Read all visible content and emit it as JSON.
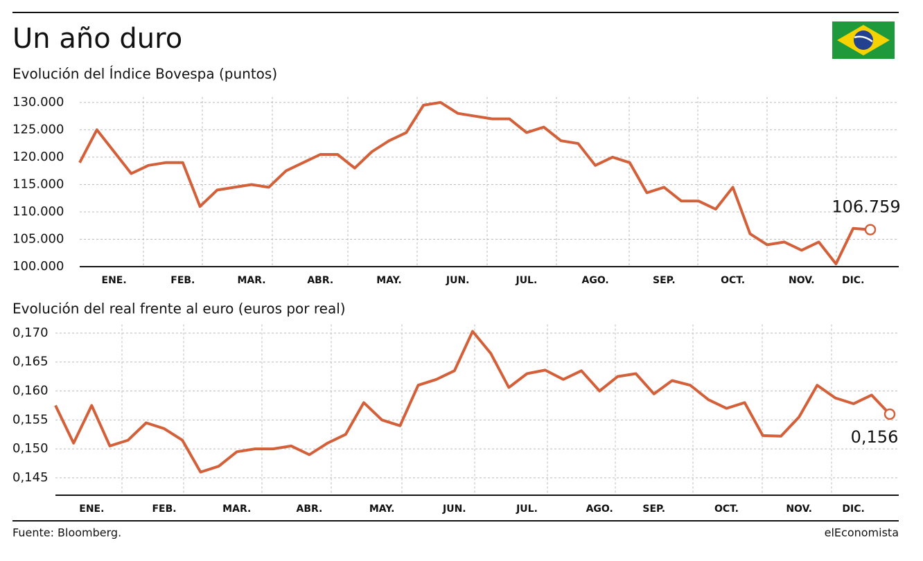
{
  "title": "Un año duro",
  "source": "Fuente: Bloomberg.",
  "brand": "elEconomista",
  "chart_data": [
    {
      "type": "line",
      "subtitle": "Evolución del Índice Bovespa (puntos)",
      "categories": [
        null,
        null,
        "ENE.",
        null,
        null,
        null,
        "FEB.",
        null,
        null,
        null,
        "MAR.",
        null,
        null,
        null,
        "ABR.",
        null,
        null,
        null,
        "MAY.",
        null,
        null,
        null,
        "JUN.",
        null,
        null,
        null,
        "JUL.",
        null,
        null,
        null,
        "AGO.",
        null,
        null,
        null,
        "SEP.",
        null,
        null,
        null,
        "OCT.",
        null,
        null,
        null,
        "NOV.",
        null,
        null,
        "DIC.",
        null
      ],
      "series": [
        {
          "name": null,
          "color": "#d4603a",
          "values": [
            119000,
            125000,
            121000,
            117000,
            118500,
            119000,
            119000,
            111000,
            114000,
            114500,
            115000,
            114500,
            117500,
            119000,
            120500,
            120500,
            118000,
            121000,
            123000,
            124500,
            129500,
            130000,
            128000,
            127500,
            127000,
            127000,
            124500,
            125500,
            123000,
            122500,
            118500,
            120000,
            119000,
            113500,
            114500,
            112000,
            112000,
            110500,
            114500,
            106000,
            104000,
            104500,
            103000,
            104500,
            100500,
            107000,
            106759
          ],
          "value_labels": [
            null,
            null,
            null,
            null,
            null,
            null,
            null,
            null,
            null,
            null,
            null,
            null,
            null,
            null,
            null,
            null,
            null,
            null,
            null,
            null,
            null,
            null,
            null,
            null,
            null,
            null,
            null,
            null,
            null,
            null,
            null,
            null,
            null,
            null,
            null,
            null,
            null,
            null,
            null,
            null,
            null,
            null,
            null,
            null,
            null,
            null,
            "106.759"
          ]
        }
      ],
      "ylim": [
        100000,
        131000
      ],
      "yticks": [
        {
          "value": 100000,
          "label": "100.000"
        },
        {
          "value": 105000,
          "label": "105.000"
        },
        {
          "value": 110000,
          "label": "110.000"
        },
        {
          "value": 115000,
          "label": "115.000"
        },
        {
          "value": 120000,
          "label": "120.000"
        },
        {
          "value": 125000,
          "label": "125.000"
        },
        {
          "value": 130000,
          "label": "130.000"
        }
      ],
      "grid": true
    },
    {
      "type": "line",
      "subtitle": "Evolución del real frente al euro (euros por real)",
      "categories": [
        null,
        null,
        "ENE.",
        null,
        null,
        null,
        "FEB.",
        null,
        null,
        null,
        "MAR.",
        null,
        null,
        null,
        "ABR.",
        null,
        null,
        null,
        "MAY.",
        null,
        null,
        null,
        "JUN.",
        null,
        null,
        null,
        "JUL.",
        null,
        null,
        null,
        "AGO.",
        null,
        null,
        "SEP.",
        null,
        null,
        null,
        "OCT.",
        null,
        null,
        null,
        "NOV.",
        null,
        null,
        "DIC.",
        null,
        null
      ],
      "series": [
        {
          "name": null,
          "color": "#d4603a",
          "values": [
            0.1575,
            0.151,
            0.1575,
            0.1505,
            0.1515,
            0.1545,
            0.1535,
            0.1515,
            0.146,
            0.147,
            0.1495,
            0.15,
            0.15,
            0.1505,
            0.149,
            0.151,
            0.1525,
            0.158,
            0.155,
            0.154,
            0.161,
            0.162,
            0.1635,
            0.1703,
            0.1665,
            0.1606,
            0.163,
            0.1636,
            0.162,
            0.1635,
            0.16,
            0.1625,
            0.163,
            0.1595,
            0.1618,
            0.161,
            0.1585,
            0.157,
            0.158,
            0.1523,
            0.1522,
            0.1555,
            0.161,
            0.1588,
            0.1578,
            0.1593,
            0.156
          ],
          "value_labels": [
            null,
            null,
            null,
            null,
            null,
            null,
            null,
            null,
            null,
            null,
            null,
            null,
            null,
            null,
            null,
            null,
            null,
            null,
            null,
            null,
            null,
            null,
            null,
            null,
            null,
            null,
            null,
            null,
            null,
            null,
            null,
            null,
            null,
            null,
            null,
            null,
            null,
            null,
            null,
            null,
            null,
            null,
            null,
            null,
            null,
            null,
            "0,156"
          ]
        }
      ],
      "ylim": [
        0.142,
        0.1715
      ],
      "yticks": [
        {
          "value": 0.145,
          "label": "0,145"
        },
        {
          "value": 0.15,
          "label": "0,150"
        },
        {
          "value": 0.155,
          "label": "0,155"
        },
        {
          "value": 0.16,
          "label": "0,160"
        },
        {
          "value": 0.165,
          "label": "0,165"
        },
        {
          "value": 0.17,
          "label": "0,170"
        }
      ],
      "grid": true
    }
  ]
}
